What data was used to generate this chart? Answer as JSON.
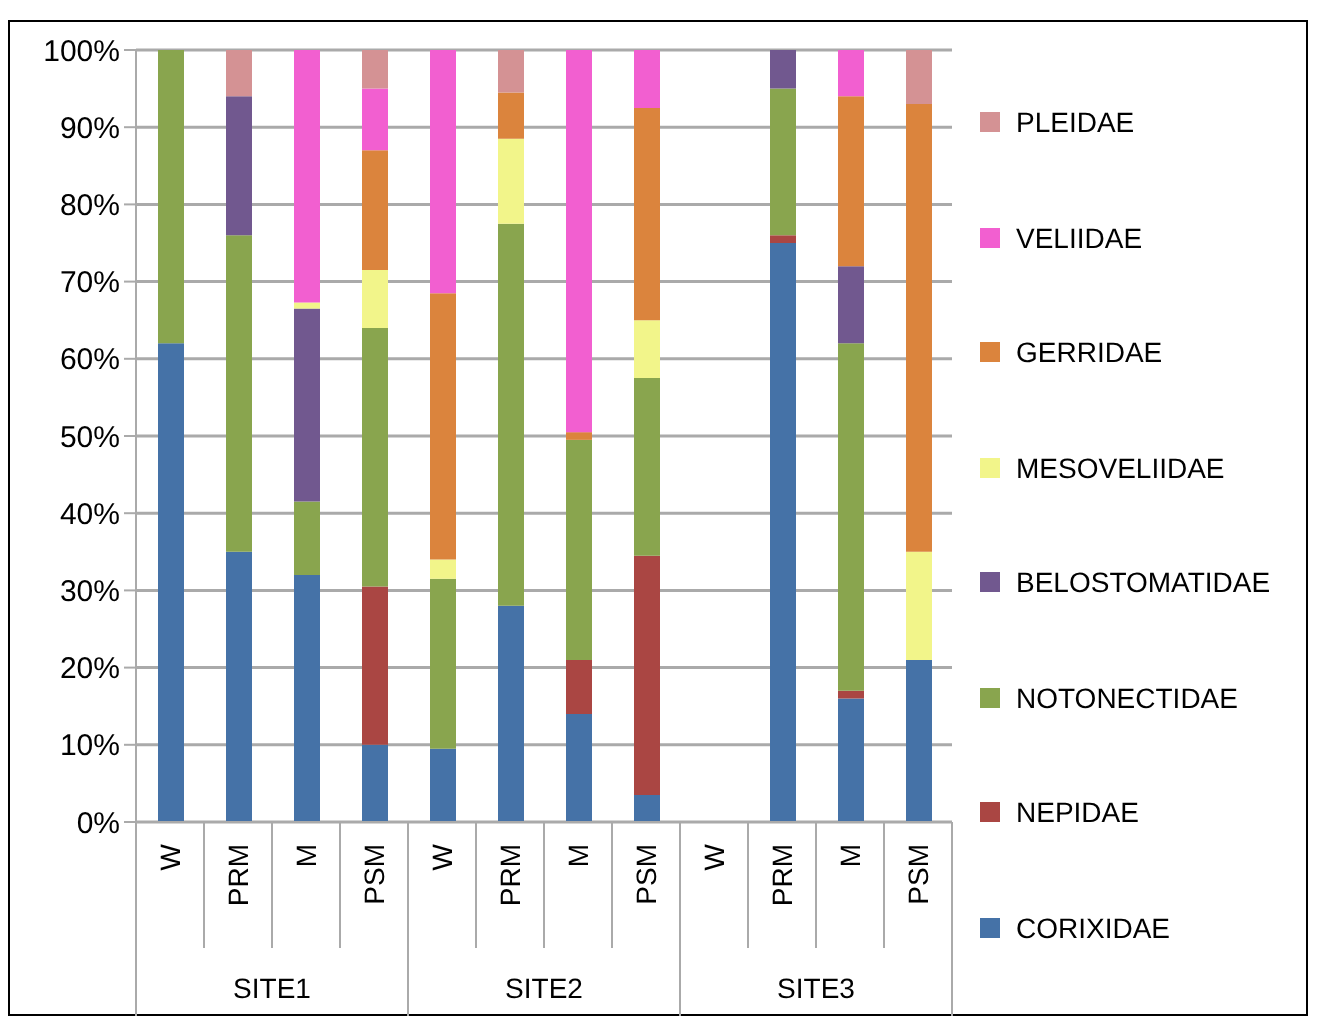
{
  "chart_data": {
    "type": "bar",
    "stacked": true,
    "categories": [
      "W",
      "PRM",
      "M",
      "PSM",
      "W",
      "PRM",
      "M",
      "PSM",
      "W",
      "PRM",
      "M",
      "PSM"
    ],
    "annotations": [
      "SITE1",
      "SITE2",
      "SITE3"
    ],
    "series": [
      {
        "name": "CORIXIDAE",
        "color": "#4572a7",
        "values": [
          62,
          35,
          32,
          10,
          9.5,
          28,
          14,
          3.5,
          null,
          75,
          16,
          21
        ]
      },
      {
        "name": "NEPIDAE",
        "color": "#aa4643",
        "values": [
          0,
          0,
          0,
          20.5,
          0,
          0,
          7,
          31,
          null,
          1,
          1,
          0
        ]
      },
      {
        "name": "NOTONECTIDAE",
        "color": "#89a54e",
        "values": [
          38,
          41,
          9.5,
          33.5,
          22,
          49.5,
          28.5,
          23,
          null,
          19,
          45,
          0
        ]
      },
      {
        "name": "BELOSTOMATIDAE",
        "color": "#71588f",
        "values": [
          0,
          18,
          25,
          0,
          0,
          0,
          0,
          0,
          null,
          5,
          10,
          0
        ]
      },
      {
        "name": "MESOVELIIDAE",
        "color": "#f2f58a",
        "values": [
          0,
          0,
          0.8,
          7.5,
          2.5,
          11,
          0,
          7.5,
          null,
          0,
          0,
          14
        ]
      },
      {
        "name": "GERRIDAE",
        "color": "#db843d",
        "values": [
          0,
          0,
          0,
          15.5,
          34.5,
          6,
          1,
          27.5,
          null,
          0,
          22,
          58
        ]
      },
      {
        "name": "VELIIDAE",
        "color": "#f25fd0",
        "values": [
          0,
          0,
          32.7,
          8,
          31.5,
          0,
          49.5,
          7.5,
          null,
          0,
          6,
          0
        ]
      },
      {
        "name": "PLEIDAE",
        "color": "#d49294",
        "values": [
          0,
          6,
          0,
          5,
          0,
          5.5,
          0,
          0,
          null,
          0,
          0,
          7
        ]
      }
    ],
    "ylim": [
      0,
      100
    ],
    "yticks": [
      {
        "value": 0,
        "label": "0%"
      },
      {
        "value": 10,
        "label": "10%"
      },
      {
        "value": 20,
        "label": "20%"
      },
      {
        "value": 30,
        "label": "30%"
      },
      {
        "value": 40,
        "label": "40%"
      },
      {
        "value": 50,
        "label": "50%"
      },
      {
        "value": 60,
        "label": "60%"
      },
      {
        "value": 70,
        "label": "70%"
      },
      {
        "value": 80,
        "label": "80%"
      },
      {
        "value": 90,
        "label": "90%"
      },
      {
        "value": 100,
        "label": "100%"
      }
    ],
    "grid": "y",
    "legend": "right"
  }
}
